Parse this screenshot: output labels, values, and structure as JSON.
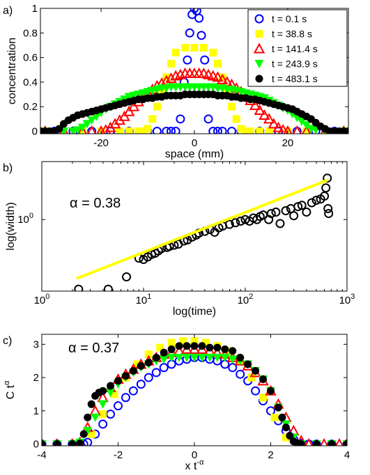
{
  "chart_data": [
    {
      "panel_label": "a)",
      "type": "scatter",
      "xlabel": "space (mm)",
      "ylabel": "concentration",
      "xlim": [
        -33,
        33
      ],
      "ylim": [
        -0.02,
        1.0
      ],
      "xticks": [
        -20,
        0,
        20
      ],
      "xtick_labels": [
        "-20",
        "0",
        "20"
      ],
      "yticks": [
        0,
        0.2,
        0.4,
        0.6,
        0.8,
        1
      ],
      "ytick_labels": [
        "0",
        "0.2",
        "0.4",
        "0.6",
        "0.8",
        "1"
      ],
      "grid": false,
      "legend_position": "top-right",
      "series": [
        {
          "name": "t = 0.1 s",
          "marker": "circle-open",
          "color": "#0000ff",
          "x": [
            -30,
            -26,
            -22,
            -18,
            -14,
            -10,
            -8,
            -6,
            -5,
            -4,
            -3,
            -2.2,
            -1.5,
            -1,
            -0.5,
            0,
            0.5,
            1,
            1.5,
            2.2,
            3,
            4,
            5,
            6,
            8,
            10,
            14,
            18,
            22,
            26,
            30
          ],
          "y": [
            0,
            0,
            0,
            0,
            0,
            0,
            0,
            0,
            0,
            0,
            0.1,
            0.4,
            0.58,
            0.8,
            0.95,
            1.0,
            0.98,
            0.92,
            0.78,
            0.58,
            0.1,
            0,
            0,
            0,
            0,
            0,
            0,
            0,
            0,
            0,
            0
          ]
        },
        {
          "name": "t = 38.8 s",
          "marker": "square",
          "color": "#ffff00",
          "x": [
            -32,
            -28,
            -24,
            -20,
            -16,
            -14,
            -12,
            -11,
            -10,
            -9,
            -8,
            -7,
            -6,
            -5,
            -4,
            -2,
            0,
            2,
            4,
            5,
            6,
            7,
            8,
            9,
            10,
            11,
            12,
            14,
            16,
            20,
            24,
            28,
            32
          ],
          "y": [
            0,
            0,
            0,
            0,
            0,
            0,
            0,
            0,
            0.02,
            0.1,
            0.2,
            0.32,
            0.44,
            0.55,
            0.64,
            0.68,
            0.68,
            0.68,
            0.64,
            0.55,
            0.44,
            0.32,
            0.2,
            0.1,
            0.02,
            0,
            0,
            0,
            0,
            0,
            0,
            0,
            0
          ]
        },
        {
          "name": "t = 141.4 s",
          "marker": "triangle-up",
          "color": "#ff0000",
          "x": [
            -32,
            -28,
            -24,
            -22,
            -20,
            -19,
            -18,
            -17,
            -16,
            -15,
            -14,
            -13,
            -12,
            -11,
            -10,
            -9,
            -8,
            -7,
            -6,
            -5,
            -4,
            -3,
            -2,
            -1,
            0,
            1,
            2,
            3,
            4,
            5,
            6,
            7,
            8,
            9,
            10,
            11,
            12,
            13,
            14,
            15,
            16,
            17,
            18,
            19,
            20,
            22,
            24,
            28,
            32
          ],
          "y": [
            0,
            0,
            0,
            0,
            0,
            0.01,
            0.03,
            0.06,
            0.09,
            0.12,
            0.16,
            0.2,
            0.24,
            0.28,
            0.31,
            0.34,
            0.37,
            0.39,
            0.41,
            0.43,
            0.45,
            0.46,
            0.47,
            0.47,
            0.47,
            0.47,
            0.47,
            0.46,
            0.45,
            0.44,
            0.42,
            0.4,
            0.38,
            0.35,
            0.32,
            0.29,
            0.25,
            0.21,
            0.17,
            0.13,
            0.1,
            0.06,
            0.03,
            0.01,
            0,
            0,
            0,
            0,
            0
          ]
        },
        {
          "name": "t = 243.9 s",
          "marker": "triangle-down",
          "color": "#00ff00",
          "x": [
            -32,
            -28,
            -26,
            -25,
            -24,
            -23,
            -22,
            -21,
            -20,
            -19,
            -18,
            -17,
            -16,
            -15,
            -14,
            -13,
            -12,
            -11,
            -10,
            -9,
            -8,
            -7,
            -6,
            -5,
            -4,
            -3,
            -2,
            -1,
            0,
            1,
            2,
            3,
            4,
            5,
            6,
            7,
            8,
            9,
            10,
            11,
            12,
            13,
            14,
            15,
            16,
            17,
            18,
            19,
            20,
            21,
            22,
            23,
            24,
            25,
            26,
            28,
            32
          ],
          "y": [
            0,
            0,
            0,
            0.01,
            0.03,
            0.06,
            0.09,
            0.12,
            0.15,
            0.18,
            0.2,
            0.22,
            0.24,
            0.26,
            0.28,
            0.29,
            0.3,
            0.31,
            0.32,
            0.33,
            0.34,
            0.35,
            0.35,
            0.36,
            0.36,
            0.36,
            0.36,
            0.36,
            0.36,
            0.36,
            0.36,
            0.36,
            0.36,
            0.35,
            0.35,
            0.34,
            0.34,
            0.33,
            0.32,
            0.31,
            0.3,
            0.29,
            0.28,
            0.27,
            0.25,
            0.23,
            0.21,
            0.19,
            0.17,
            0.14,
            0.11,
            0.08,
            0.05,
            0.02,
            0.01,
            0,
            0
          ]
        },
        {
          "name": "t = 483.1 s",
          "marker": "circle",
          "color": "#000000",
          "x": [
            -33,
            -32,
            -31,
            -30,
            -29,
            -28,
            -27,
            -26,
            -25,
            -24,
            -23,
            -22,
            -21,
            -20,
            -19,
            -18,
            -17,
            -16,
            -15,
            -14,
            -13,
            -12,
            -11,
            -10,
            -9,
            -8,
            -7,
            -6,
            -5,
            -4,
            -3,
            -2,
            -1,
            0,
            1,
            2,
            3,
            4,
            5,
            6,
            7,
            8,
            9,
            10,
            11,
            12,
            13,
            14,
            15,
            16,
            17,
            18,
            19,
            20,
            21,
            22,
            23,
            24,
            25,
            26,
            27,
            28,
            29,
            30,
            31,
            32,
            33
          ],
          "y": [
            0,
            0,
            0,
            0,
            0.02,
            0.06,
            0.09,
            0.11,
            0.13,
            0.14,
            0.15,
            0.16,
            0.17,
            0.18,
            0.19,
            0.2,
            0.21,
            0.22,
            0.23,
            0.24,
            0.25,
            0.26,
            0.26,
            0.27,
            0.27,
            0.28,
            0.28,
            0.29,
            0.29,
            0.29,
            0.29,
            0.3,
            0.3,
            0.3,
            0.3,
            0.3,
            0.3,
            0.3,
            0.29,
            0.29,
            0.29,
            0.28,
            0.28,
            0.27,
            0.27,
            0.26,
            0.26,
            0.25,
            0.24,
            0.23,
            0.22,
            0.21,
            0.2,
            0.19,
            0.18,
            0.16,
            0.14,
            0.12,
            0.1,
            0.07,
            0.04,
            0.02,
            0,
            0,
            0,
            0,
            0
          ]
        }
      ]
    },
    {
      "panel_label": "b)",
      "type": "scatter",
      "xlabel": "log(time)",
      "ylabel": "log(width)",
      "x_scale": "log",
      "y_scale": "log",
      "xlim": [
        1,
        1000
      ],
      "ylim": [
        0.4,
        2.1
      ],
      "xticks": [
        1,
        10,
        100,
        1000
      ],
      "xtick_labels": [
        "10",
        "10",
        "10",
        "10"
      ],
      "xtick_exponents": [
        "0",
        "1",
        "2",
        "3"
      ],
      "yticks": [
        1
      ],
      "ytick_labels": [
        "10"
      ],
      "ytick_exponents": [
        "0"
      ],
      "annotation": "α = 0.38",
      "grid": false,
      "series": [
        {
          "marker": "circle-open",
          "color": "#000000",
          "x": [
            2.3,
            4.5,
            6.8,
            9,
            10,
            11,
            12,
            13,
            14,
            15,
            17,
            18,
            20,
            22,
            25,
            27,
            30,
            33,
            35,
            40,
            45,
            50,
            55,
            60,
            70,
            80,
            90,
            100,
            110,
            120,
            130,
            140,
            150,
            170,
            180,
            200,
            220,
            250,
            280,
            300,
            330,
            360,
            400,
            450,
            500,
            550,
            600,
            620,
            640,
            650,
            660
          ],
          "y": [
            0.41,
            0.41,
            0.48,
            0.61,
            0.6,
            0.62,
            0.64,
            0.65,
            0.67,
            0.69,
            0.7,
            0.71,
            0.72,
            0.73,
            0.76,
            0.77,
            0.8,
            0.82,
            0.84,
            0.86,
            0.88,
            0.85,
            0.9,
            0.92,
            0.94,
            0.96,
            0.98,
            1.0,
            0.98,
            1.02,
            1.0,
            1.04,
            1.06,
            1.0,
            1.08,
            1.1,
            0.95,
            1.12,
            1.15,
            1.05,
            1.18,
            1.2,
            1.1,
            1.24,
            1.28,
            1.3,
            1.35,
            1.5,
            1.7,
            1.15,
            1.08
          ]
        },
        {
          "marker": "line",
          "color": "#ffff00",
          "x": [
            2.2,
            650
          ],
          "y": [
            0.47,
            1.66
          ]
        }
      ]
    },
    {
      "panel_label": "c)",
      "type": "scatter",
      "xlabel": "x t",
      "xlabel_sup": "-α",
      "ylabel": "C t",
      "ylabel_sup": "α",
      "xlim": [
        -4,
        4
      ],
      "ylim": [
        -0.05,
        3.3
      ],
      "xticks": [
        -4,
        -2,
        0,
        2,
        4
      ],
      "xtick_labels": [
        "-4",
        "-2",
        "0",
        "2",
        "4"
      ],
      "yticks": [
        0,
        1,
        2,
        3
      ],
      "ytick_labels": [
        "0",
        "1",
        "2",
        "3"
      ],
      "annotation": "α = 0.37",
      "grid": false,
      "series": [
        {
          "marker": "circle-open",
          "color": "#0000ff",
          "x": [
            -4,
            -3.6,
            -3.2,
            -2.9,
            -2.8,
            -2.6,
            -2.4,
            -2.2,
            -2,
            -1.8,
            -1.6,
            -1.4,
            -1.2,
            -1,
            -0.8,
            -0.6,
            -0.4,
            -0.2,
            0,
            0.2,
            0.4,
            0.6,
            0.8,
            1,
            1.2,
            1.4,
            1.6,
            1.8,
            2,
            2.2,
            2.4,
            2.6,
            2.8,
            3,
            3.2,
            3.6,
            4
          ],
          "y": [
            0,
            0,
            0,
            0,
            0.05,
            0.3,
            0.6,
            0.9,
            1.15,
            1.4,
            1.6,
            1.8,
            2.0,
            2.15,
            2.3,
            2.4,
            2.5,
            2.55,
            2.6,
            2.6,
            2.55,
            2.5,
            2.4,
            2.3,
            2.1,
            1.9,
            1.6,
            1.3,
            1.0,
            0.7,
            0.4,
            0.15,
            0.02,
            0,
            0,
            0,
            0
          ]
        },
        {
          "marker": "square",
          "color": "#ffff00",
          "x": [
            -2.7,
            -2.4,
            -2.1,
            -1.8,
            -1.5,
            -1.2,
            -0.9,
            -0.6,
            -0.3,
            0,
            0.3,
            0.6,
            0.9,
            1.2,
            1.5,
            1.8,
            2.1,
            2.4
          ],
          "y": [
            0.3,
            0.9,
            1.5,
            2.0,
            2.4,
            2.7,
            2.9,
            3.05,
            3.1,
            3.1,
            3.05,
            2.95,
            2.8,
            2.5,
            2.0,
            1.4,
            0.8,
            0.2
          ]
        },
        {
          "marker": "triangle-up",
          "color": "#ff0000",
          "x": [
            -4,
            -3.6,
            -3.2,
            -3,
            -2.8,
            -2.6,
            -2.4,
            -2.2,
            -2,
            -1.8,
            -1.6,
            -1.4,
            -1.2,
            -1,
            -0.8,
            -0.6,
            -0.4,
            -0.2,
            0,
            0.2,
            0.4,
            0.6,
            0.8,
            1,
            1.2,
            1.4,
            1.6,
            1.8,
            2,
            2.2,
            2.4,
            2.6,
            2.8,
            3,
            3.4,
            3.8,
            4
          ],
          "y": [
            0,
            0,
            0,
            0.05,
            0.5,
            1.0,
            1.4,
            1.7,
            1.95,
            2.1,
            2.25,
            2.4,
            2.5,
            2.6,
            2.7,
            2.75,
            2.8,
            2.85,
            2.85,
            2.85,
            2.8,
            2.75,
            2.7,
            2.6,
            2.5,
            2.35,
            2.15,
            1.9,
            1.6,
            1.2,
            0.8,
            0.4,
            0.1,
            0,
            0,
            0,
            0
          ]
        },
        {
          "marker": "triangle-down",
          "color": "#00ff00",
          "x": [
            -4,
            -3.6,
            -3.2,
            -3,
            -2.8,
            -2.6,
            -2.4,
            -2.2,
            -2,
            -1.8,
            -1.6,
            -1.4,
            -1.2,
            -1,
            -0.8,
            -0.6,
            -0.4,
            -0.2,
            0,
            0.2,
            0.4,
            0.6,
            0.8,
            1,
            1.2,
            1.4,
            1.6,
            1.8,
            2,
            2.2,
            2.4,
            2.6,
            2.8,
            3.2,
            3.6,
            4
          ],
          "y": [
            0,
            0,
            0,
            0.05,
            0.4,
            0.8,
            1.2,
            1.55,
            1.8,
            2.0,
            2.15,
            2.3,
            2.4,
            2.5,
            2.55,
            2.6,
            2.6,
            2.6,
            2.6,
            2.6,
            2.6,
            2.6,
            2.6,
            2.55,
            2.5,
            2.4,
            2.2,
            1.95,
            1.6,
            1.1,
            0.6,
            0.2,
            0,
            0,
            0,
            0
          ]
        },
        {
          "marker": "circle",
          "color": "#000000",
          "x": [
            -4,
            -3.6,
            -3.2,
            -3,
            -2.9,
            -2.8,
            -2.7,
            -2.6,
            -2.5,
            -2.4,
            -2.2,
            -2,
            -1.8,
            -1.6,
            -1.4,
            -1.2,
            -1,
            -0.8,
            -0.6,
            -0.4,
            -0.2,
            0,
            0.2,
            0.4,
            0.6,
            0.8,
            1,
            1.2,
            1.4,
            1.6,
            1.8,
            2,
            2.2,
            2.3,
            2.4,
            2.5,
            2.6,
            2.7,
            2.8,
            3.2,
            3.6,
            4
          ],
          "y": [
            0,
            0,
            0,
            0.02,
            0.3,
            0.8,
            1.2,
            1.45,
            1.55,
            1.6,
            1.75,
            1.9,
            2.05,
            2.2,
            2.35,
            2.45,
            2.6,
            2.75,
            2.85,
            2.95,
            2.95,
            2.95,
            2.95,
            2.9,
            2.9,
            2.85,
            2.8,
            2.6,
            2.4,
            2.2,
            1.95,
            1.6,
            1.1,
            0.8,
            0.5,
            0.25,
            0.08,
            0.02,
            0,
            0,
            0,
            0
          ]
        }
      ]
    }
  ]
}
